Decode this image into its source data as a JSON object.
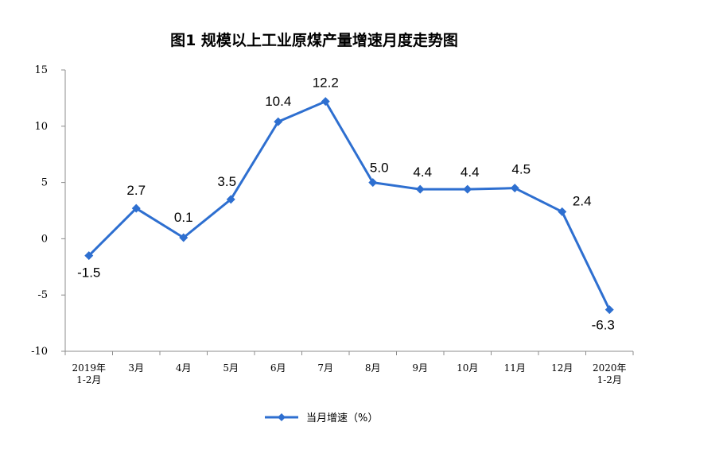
{
  "chart_data": {
    "type": "line",
    "title": "图1  规模以上工业原煤产量增速月度走势图",
    "xlabel": "",
    "ylabel": "",
    "ylim": [
      -10,
      15
    ],
    "yticks": [
      15,
      10,
      5,
      0,
      -5,
      -10
    ],
    "grid": false,
    "legend_position": "bottom-center",
    "categories": [
      [
        "2019年",
        "1-2月"
      ],
      [
        "3月"
      ],
      [
        "4月"
      ],
      [
        "5月"
      ],
      [
        "6月"
      ],
      [
        "7月"
      ],
      [
        "8月"
      ],
      [
        "9月"
      ],
      [
        "10月"
      ],
      [
        "11月"
      ],
      [
        "12月"
      ],
      [
        "2020年",
        "1-2月"
      ]
    ],
    "series": [
      {
        "name": "当月增速（%）",
        "color": "#2e6fd0",
        "marker": "diamond",
        "values": [
          -1.5,
          2.7,
          0.1,
          3.5,
          10.4,
          12.2,
          5.0,
          4.4,
          4.4,
          4.5,
          2.4,
          -6.3
        ],
        "labels": [
          "-1.5",
          "2.7",
          "0.1",
          "3.5",
          "10.4",
          "12.2",
          "5.0",
          "4.4",
          "4.4",
          "4.5",
          "2.4",
          "-6.3"
        ]
      }
    ]
  }
}
